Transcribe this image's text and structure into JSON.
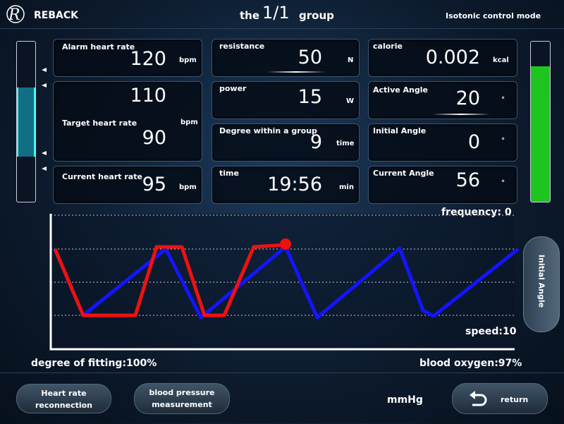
{
  "header": {
    "brand": "REBACK",
    "group_prefix": "the",
    "group": "1/1",
    "group_suffix": "group",
    "mode": "Isotonic control mode"
  },
  "cards": {
    "alarm": {
      "label": "Alarm heart rate",
      "value": "120",
      "unit": "bpm"
    },
    "upper": {
      "value": "110"
    },
    "target": {
      "label": "Target heart rate",
      "value": "90",
      "unit": "bpm"
    },
    "current_hr": {
      "label": "Current heart rate",
      "value": "95",
      "unit": "bpm"
    },
    "resistance": {
      "label": "resistance",
      "value": "50",
      "unit": "N"
    },
    "power": {
      "label": "power",
      "value": "15",
      "unit": "W"
    },
    "degree": {
      "label": "Degree within a group",
      "value": "9",
      "unit": "time"
    },
    "time": {
      "label": "time",
      "value": "19:56",
      "unit": "min"
    },
    "calorie": {
      "label": "calorie",
      "value": "0.002",
      "unit": "kcal"
    },
    "active_angle": {
      "label": "Active Angle",
      "value": "20",
      "unit": "°"
    },
    "initial_angle": {
      "label": "Initial Angle",
      "value": "0",
      "unit": "°"
    },
    "current_angle": {
      "label": "Current Angle",
      "value": "56",
      "unit": "°"
    }
  },
  "graph": {
    "frequency": "frequency: 0",
    "speed": "speed:10",
    "side_button": "Initial Angle"
  },
  "status": {
    "fitting": "degree of fitting:100%",
    "oxygen": "blood oxygen:97%"
  },
  "footer": {
    "reconnect": [
      "Heart rate",
      "reconnection"
    ],
    "bp": [
      "blood pressure",
      "measurement"
    ],
    "unit": "mmHg",
    "return": "return"
  }
}
